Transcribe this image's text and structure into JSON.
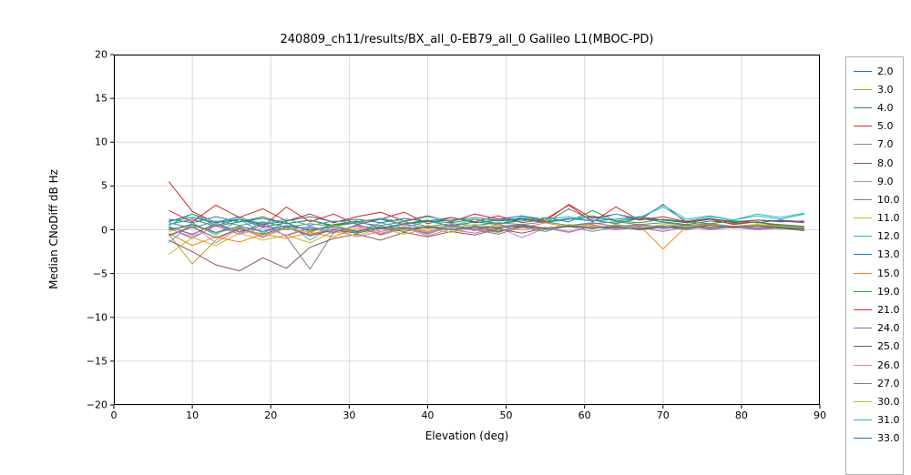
{
  "chart_data": {
    "type": "line",
    "title": "240809_ch11/results/BX_all_0-EB79_all_0 Galileo L1(MBOC-PD)",
    "xlabel": "Elevation (deg)",
    "ylabel": "Median CNoDiff dB Hz",
    "xlim": [
      0,
      90
    ],
    "ylim": [
      -20,
      20
    ],
    "grid": true,
    "grid_color": "#d9d9d9",
    "legend_position": "right-outside",
    "xticks": [
      {
        "v": 0,
        "label": "0"
      },
      {
        "v": 10,
        "label": "10"
      },
      {
        "v": 20,
        "label": "20"
      },
      {
        "v": 30,
        "label": "30"
      },
      {
        "v": 40,
        "label": "40"
      },
      {
        "v": 50,
        "label": "50"
      },
      {
        "v": 60,
        "label": "60"
      },
      {
        "v": 70,
        "label": "70"
      },
      {
        "v": 80,
        "label": "80"
      },
      {
        "v": 90,
        "label": "90"
      }
    ],
    "yticks": [
      {
        "v": 20,
        "label": "20"
      },
      {
        "v": 15,
        "label": "15"
      },
      {
        "v": 10,
        "label": "10"
      },
      {
        "v": 5,
        "label": "5"
      },
      {
        "v": 0,
        "label": "0"
      },
      {
        "v": -5,
        "label": "−5"
      },
      {
        "v": -10,
        "label": "−10"
      },
      {
        "v": -15,
        "label": "−15"
      },
      {
        "v": -20,
        "label": "−20"
      }
    ],
    "x": [
      7,
      10,
      13,
      16,
      19,
      22,
      25,
      28,
      31,
      34,
      37,
      40,
      43,
      46,
      49,
      52,
      55,
      58,
      61,
      64,
      67,
      70,
      73,
      76,
      79,
      82,
      85,
      88
    ],
    "series": [
      {
        "name": "2.0",
        "color": "#1f77b4",
        "values": [
          1.2,
          0.8,
          1.5,
          0.9,
          1.3,
          0.7,
          1.1,
          0.4,
          0.9,
          1.2,
          0.6,
          1.0,
          1.4,
          0.8,
          1.1,
          1.3,
          0.9,
          1.2,
          1.5,
          1.0,
          1.3,
          1.1,
          0.8,
          1.2,
          0.9,
          1.1,
          1.0,
          0.8
        ]
      },
      {
        "name": "3.0",
        "color": "#bf9a26",
        "values": [
          -0.5,
          -3.9,
          -1.2,
          0.3,
          -0.8,
          0.2,
          -0.5,
          0.1,
          -0.3,
          0.4,
          -0.2,
          0.3,
          0.0,
          -0.4,
          0.2,
          0.5,
          0.1,
          0.6,
          0.3,
          0.2,
          0.5,
          0.4,
          0.1,
          0.3,
          0.2,
          0.4,
          0.1,
          0.0
        ]
      },
      {
        "name": "4.0",
        "color": "#2e8b57",
        "values": [
          0.9,
          1.8,
          0.5,
          1.2,
          0.3,
          0.8,
          -0.2,
          0.6,
          1.0,
          0.2,
          0.7,
          1.1,
          0.4,
          0.9,
          0.6,
          1.2,
          0.8,
          2.4,
          1.1,
          0.7,
          1.3,
          0.9,
          0.6,
          1.0,
          0.7,
          0.9,
          0.5,
          0.3
        ]
      },
      {
        "name": "5.0",
        "color": "#d62728",
        "values": [
          5.5,
          2.1,
          0.8,
          1.5,
          0.4,
          2.6,
          0.9,
          1.8,
          0.6,
          1.2,
          2.0,
          0.7,
          1.4,
          0.9,
          1.6,
          0.8,
          1.2,
          2.8,
          0.9,
          2.6,
          1.1,
          2.9,
          0.8,
          1.2,
          0.6,
          0.9,
          0.4,
          0.1
        ]
      },
      {
        "name": "7.0",
        "color": "#8a8a9e",
        "values": [
          0.4,
          -0.6,
          0.8,
          -0.3,
          0.5,
          -0.7,
          0.2,
          -0.4,
          0.6,
          -0.2,
          0.3,
          -0.5,
          0.4,
          0.1,
          -0.3,
          0.5,
          0.0,
          0.4,
          -0.2,
          0.3,
          0.6,
          0.1,
          0.4,
          0.0,
          0.3,
          0.5,
          0.2,
          0.0
        ]
      },
      {
        "name": "8.0",
        "color": "#8c564b",
        "values": [
          -1.2,
          -2.5,
          -4.0,
          -4.7,
          -3.2,
          -4.4,
          -2.0,
          -1.0,
          -0.5,
          -1.2,
          -0.3,
          -0.8,
          -0.2,
          -0.6,
          0.1,
          -0.4,
          0.2,
          -0.3,
          0.4,
          0.0,
          0.3,
          -0.2,
          0.4,
          0.1,
          0.3,
          0.0,
          0.2,
          -0.1
        ]
      },
      {
        "name": "9.0",
        "color": "#c77ddb",
        "values": [
          -0.8,
          0.5,
          -1.5,
          0.2,
          -0.9,
          0.4,
          -0.6,
          0.1,
          -0.8,
          -0.2,
          0.3,
          -0.7,
          0.1,
          -0.4,
          0.3,
          -0.9,
          0.2,
          -0.3,
          0.5,
          0.0,
          0.4,
          -0.2,
          0.3,
          0.1,
          0.4,
          0.2,
          0.5,
          0.3
        ]
      },
      {
        "name": "10.0",
        "color": "#7f7f7f",
        "values": [
          0.2,
          -1.0,
          0.6,
          -0.5,
          0.9,
          -0.8,
          -4.5,
          -0.3,
          0.5,
          -0.6,
          0.2,
          -0.4,
          0.6,
          0.0,
          -0.5,
          0.3,
          -0.2,
          0.5,
          0.1,
          0.6,
          0.2,
          0.4,
          0.0,
          0.5,
          0.2,
          0.6,
          0.3,
          0.1
        ]
      },
      {
        "name": "11.0",
        "color": "#bcbd22",
        "values": [
          -2.8,
          -0.9,
          -1.8,
          -0.4,
          -1.2,
          -0.6,
          -1.5,
          -0.2,
          -0.7,
          0.2,
          -0.5,
          0.1,
          -0.3,
          0.4,
          -0.1,
          0.3,
          0.0,
          0.5,
          0.2,
          0.4,
          0.1,
          0.6,
          0.3,
          0.5,
          0.2,
          0.4,
          0.1,
          0.3
        ]
      },
      {
        "name": "12.0",
        "color": "#17becf",
        "values": [
          -1.5,
          0.8,
          -0.6,
          1.2,
          -0.4,
          0.9,
          -1.2,
          0.5,
          -0.3,
          0.8,
          0.2,
          1.0,
          0.4,
          1.2,
          0.6,
          1.5,
          0.8,
          1.2,
          1.6,
          1.0,
          1.4,
          2.6,
          1.0,
          1.5,
          1.1,
          1.6,
          1.2,
          1.8
        ]
      },
      {
        "name": "13.0",
        "color": "#1f77b4",
        "values": [
          1.0,
          1.4,
          0.8,
          1.2,
          0.6,
          1.0,
          1.5,
          0.9,
          1.2,
          0.8,
          1.3,
          0.9,
          1.1,
          1.4,
          1.0,
          1.2,
          0.9,
          1.3,
          1.0,
          1.2,
          1.5,
          1.1,
          0.9,
          1.2,
          1.0,
          0.8,
          1.1,
          0.9
        ]
      },
      {
        "name": "15.0",
        "color": "#ff7f0e",
        "values": [
          -0.4,
          -1.8,
          -0.8,
          -1.4,
          -0.5,
          -1.0,
          -0.3,
          -0.8,
          0.2,
          -0.5,
          0.4,
          -0.2,
          0.5,
          0.0,
          0.6,
          0.2,
          0.8,
          0.3,
          0.6,
          0.1,
          0.5,
          -2.2,
          0.4,
          0.6,
          0.2,
          0.5,
          0.3,
          0.1
        ]
      },
      {
        "name": "19.0",
        "color": "#2ca02c",
        "values": [
          0.6,
          1.2,
          0.4,
          0.9,
          1.5,
          0.7,
          1.1,
          0.5,
          0.9,
          1.3,
          0.6,
          1.0,
          0.8,
          1.2,
          0.7,
          1.0,
          1.4,
          0.9,
          2.2,
          1.0,
          0.8,
          1.2,
          0.9,
          0.7,
          1.0,
          0.8,
          0.6,
          0.4
        ]
      },
      {
        "name": "21.0",
        "color": "#d62728",
        "values": [
          2.2,
          0.9,
          2.8,
          1.4,
          2.4,
          1.0,
          1.8,
          0.8,
          1.5,
          2.0,
          1.0,
          1.6,
          0.9,
          1.8,
          1.2,
          1.6,
          1.0,
          2.9,
          1.3,
          1.8,
          1.1,
          1.5,
          0.9,
          1.3,
          0.8,
          1.1,
          0.9,
          1.0
        ]
      },
      {
        "name": "24.0",
        "color": "#9467bd",
        "values": [
          0.3,
          -0.5,
          0.6,
          -0.2,
          0.5,
          0.0,
          0.4,
          -0.3,
          0.5,
          0.1,
          0.6,
          0.2,
          0.5,
          0.0,
          0.4,
          0.6,
          0.2,
          0.5,
          0.8,
          0.4,
          0.6,
          0.3,
          0.5,
          0.2,
          0.4,
          0.1,
          0.3,
          0.2
        ]
      },
      {
        "name": "25.0",
        "color": "#8c564b",
        "values": [
          -0.6,
          0.3,
          -0.9,
          0.1,
          -0.5,
          0.3,
          -0.7,
          0.0,
          -0.4,
          0.2,
          -0.2,
          0.4,
          0.0,
          0.3,
          -0.2,
          0.4,
          0.1,
          0.5,
          0.2,
          0.4,
          0.0,
          0.3,
          0.5,
          0.2,
          0.4,
          0.6,
          0.3,
          0.1
        ]
      },
      {
        "name": "26.0",
        "color": "#e377c2",
        "values": [
          0.1,
          -0.8,
          0.4,
          -0.5,
          0.2,
          -0.6,
          0.3,
          -0.2,
          0.4,
          -0.4,
          0.2,
          -0.3,
          0.3,
          -0.1,
          0.4,
          0.0,
          0.3,
          -0.2,
          0.4,
          0.1,
          0.5,
          0.2,
          0.4,
          0.1,
          0.3,
          0.0,
          0.2,
          0.1
        ]
      },
      {
        "name": "27.0",
        "color": "#7f7f7f",
        "values": [
          0.8,
          0.2,
          1.0,
          0.5,
          0.9,
          0.3,
          0.7,
          0.4,
          0.8,
          0.5,
          0.9,
          0.4,
          0.7,
          0.5,
          0.8,
          0.6,
          0.9,
          0.5,
          0.7,
          0.9,
          0.6,
          0.8,
          0.5,
          0.7,
          0.4,
          0.6,
          0.5,
          0.3
        ]
      },
      {
        "name": "30.0",
        "color": "#bcbd22",
        "values": [
          -0.2,
          0.5,
          -0.4,
          0.3,
          -0.6,
          0.2,
          -0.3,
          0.5,
          -0.1,
          0.4,
          0.0,
          0.5,
          0.2,
          0.6,
          0.3,
          0.5,
          0.1,
          0.6,
          0.3,
          0.5,
          0.2,
          0.6,
          0.4,
          0.5,
          0.3,
          0.6,
          0.4,
          0.2
        ]
      },
      {
        "name": "31.0",
        "color": "#17becf",
        "values": [
          0.5,
          1.8,
          0.9,
          1.4,
          0.7,
          1.2,
          0.5,
          1.0,
          0.8,
          1.3,
          0.9,
          1.5,
          1.0,
          1.4,
          1.1,
          1.6,
          1.2,
          1.5,
          1.0,
          1.8,
          1.3,
          2.8,
          1.2,
          1.6,
          1.1,
          1.8,
          1.4,
          1.9
        ]
      },
      {
        "name": "33.0",
        "color": "#1f77b4",
        "values": [
          0.0,
          0.6,
          -0.3,
          0.4,
          -0.2,
          0.5,
          0.0,
          0.3,
          -0.2,
          0.4,
          0.1,
          0.3,
          0.0,
          0.4,
          0.2,
          0.5,
          0.1,
          0.4,
          0.2,
          0.3,
          0.1,
          0.4,
          0.2,
          0.5,
          0.3,
          0.4,
          0.2,
          0.1
        ]
      }
    ]
  }
}
